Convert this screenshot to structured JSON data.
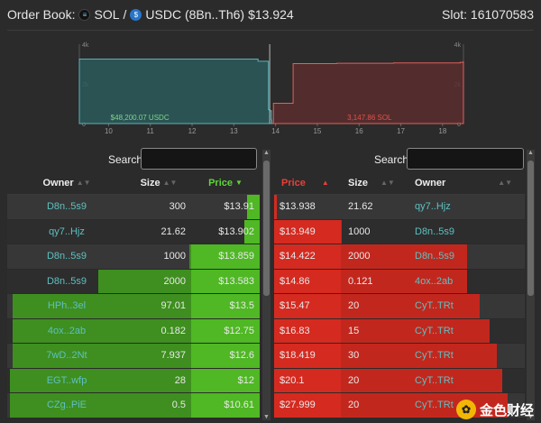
{
  "header": {
    "prefix": "Order Book:",
    "base": "SOL",
    "separator": "/",
    "quote": "USDC (8Bn..Th6)",
    "price": "$13.924",
    "slot": "Slot: 161070583"
  },
  "chart_data": {
    "type": "area",
    "x_ticks": [
      "10",
      "11",
      "12",
      "13",
      "14",
      "15",
      "16",
      "17",
      "18"
    ],
    "y_ticks_left": [
      "4k",
      "2k",
      "0"
    ],
    "y_ticks_right": [
      "4k",
      "2k",
      "0"
    ],
    "xlim": [
      9.3,
      18.5
    ],
    "ylim": [
      0,
      4000
    ],
    "mid_price": 13.924,
    "bids": {
      "label": "$48,200.07 USDC",
      "color": "#5bb0b8",
      "x": [
        9.3,
        13.56,
        13.58,
        13.83,
        13.86,
        13.9,
        13.91
      ],
      "y": [
        3250,
        3250,
        3140,
        700,
        650,
        180,
        0
      ]
    },
    "asks": {
      "label": "3,147.86 SOL",
      "color": "#e0605a",
      "x": [
        13.938,
        13.949,
        14.42,
        14.86,
        15.47,
        16.83,
        18.42,
        18.5
      ],
      "y": [
        22,
        1022,
        3022,
        3022,
        3042,
        3057,
        3087,
        3147
      ]
    }
  },
  "search": {
    "left_label": "Search:",
    "right_label": "Search:",
    "left_value": "",
    "right_value": ""
  },
  "bids": {
    "headers": {
      "owner": "Owner",
      "size": "Size",
      "price": "Price"
    },
    "rows": [
      {
        "owner": "D8n..5s9",
        "size": "300",
        "price": "$13.91",
        "fill": 0.05
      },
      {
        "owner": "qy7..Hjz",
        "size": "21.62",
        "price": "$13.902",
        "fill": 0.06
      },
      {
        "owner": "D8n..5s9",
        "size": "1000",
        "price": "$13.859",
        "fill": 0.28
      },
      {
        "owner": "D8n..5s9",
        "size": "2000",
        "price": "$13.583",
        "fill": 0.64
      },
      {
        "owner": "HPh..3el",
        "size": "97.01",
        "price": "$13.5",
        "fill": 0.98
      },
      {
        "owner": "4ox..2ab",
        "size": "0.182",
        "price": "$12.75",
        "fill": 0.98
      },
      {
        "owner": "7wD..2Nt",
        "size": "7.937",
        "price": "$12.6",
        "fill": 0.98
      },
      {
        "owner": "EGT..wfp",
        "size": "28",
        "price": "$12",
        "fill": 0.99
      },
      {
        "owner": "CZg..PiE",
        "size": "0.5",
        "price": "$10.61",
        "fill": 0.99
      }
    ]
  },
  "asks": {
    "headers": {
      "price": "Price",
      "size": "Size",
      "owner": "Owner"
    },
    "rows": [
      {
        "price": "$13.938",
        "size": "21.62",
        "owner": "qy7..Hjz",
        "fill": 0.01
      },
      {
        "price": "$13.949",
        "size": "1000",
        "owner": "D8n..5s9",
        "fill": 0.27
      },
      {
        "price": "$14.422",
        "size": "2000",
        "owner": "D8n..5s9",
        "fill": 0.77
      },
      {
        "price": "$14.86",
        "size": "0.121",
        "owner": "4ox..2ab",
        "fill": 0.77
      },
      {
        "price": "$15.47",
        "size": "20",
        "owner": "CyT..TRt",
        "fill": 0.82
      },
      {
        "price": "$16.83",
        "size": "15",
        "owner": "CyT..TRt",
        "fill": 0.86
      },
      {
        "price": "$18.419",
        "size": "30",
        "owner": "CyT..TRt",
        "fill": 0.89
      },
      {
        "price": "$20.1",
        "size": "20",
        "owner": "CyT..TRt",
        "fill": 0.91
      },
      {
        "price": "$27.999",
        "size": "20",
        "owner": "CyT..TRt",
        "fill": 0.93
      }
    ]
  },
  "watermark": {
    "text": "金色财经",
    "logo_glyph": "✿"
  }
}
